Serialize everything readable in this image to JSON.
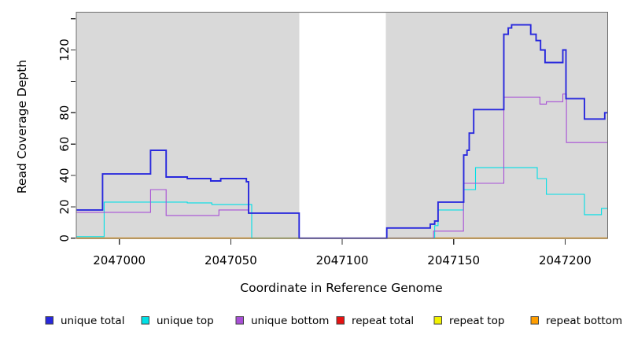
{
  "figure_title": "",
  "chart_data": {
    "type": "line",
    "line_style": "step-after",
    "title": "",
    "xlabel": "Coordinate in Reference Genome",
    "ylabel": "Read Coverage Depth",
    "xlim": [
      2046980.7,
      2047219.1
    ],
    "ylim": [
      0,
      144.1
    ],
    "grid": "off",
    "plot_background_color": "#d9d9d9",
    "masked_region": {
      "x_start": 2047080.7,
      "x_end": 2047119.5,
      "color": "#ffffff"
    },
    "x_ticks": [
      {
        "value": 2047000,
        "label": "2047000"
      },
      {
        "value": 2047050,
        "label": "2047050"
      },
      {
        "value": 2047100,
        "label": "2047100"
      },
      {
        "value": 2047150,
        "label": "2047150"
      },
      {
        "value": 2047200,
        "label": "2047200"
      }
    ],
    "y_ticks": [
      {
        "value": 0,
        "label": "0"
      },
      {
        "value": 20,
        "label": "20"
      },
      {
        "value": 40,
        "label": "40"
      },
      {
        "value": 60,
        "label": "60"
      },
      {
        "value": 80,
        "label": "80"
      },
      {
        "value": 100,
        "label": ""
      },
      {
        "value": 120,
        "label": "120"
      },
      {
        "value": 140,
        "label": ""
      }
    ],
    "legend_position": "bottom",
    "draw_order": [
      "repeat-total",
      "repeat-top",
      "repeat-bottom",
      "unique-top",
      "unique-bottom",
      "unique-total"
    ],
    "series": [
      {
        "key": "unique-total",
        "name": "unique total",
        "color": "#2828dd",
        "lwd": 1.9,
        "points": [
          [
            2046980.7,
            18
          ],
          [
            2046992.5,
            41
          ],
          [
            2047014,
            56
          ],
          [
            2047021,
            39
          ],
          [
            2047030.5,
            38
          ],
          [
            2047041,
            36.5
          ],
          [
            2047045.5,
            38
          ],
          [
            2047057,
            36
          ],
          [
            2047058,
            16
          ],
          [
            2047080.7,
            0
          ],
          [
            2047120,
            6.5
          ],
          [
            2047139.5,
            9
          ],
          [
            2047141.5,
            11
          ],
          [
            2047143,
            23
          ],
          [
            2047154.5,
            53
          ],
          [
            2047156,
            56
          ],
          [
            2047157,
            67
          ],
          [
            2047159,
            82
          ],
          [
            2047172.5,
            130
          ],
          [
            2047174.5,
            134
          ],
          [
            2047176,
            136
          ],
          [
            2047184.6,
            130
          ],
          [
            2047187,
            126
          ],
          [
            2047189,
            120
          ],
          [
            2047191,
            112
          ],
          [
            2047199,
            120
          ],
          [
            2047200.4,
            89
          ],
          [
            2047208.7,
            76
          ],
          [
            2047217.8,
            80
          ]
        ]
      },
      {
        "key": "unique-top",
        "name": "unique top",
        "color": "#00e0e6",
        "lwd": 1.1,
        "points": [
          [
            2046980.7,
            1
          ],
          [
            2046993.2,
            23
          ],
          [
            2047030.5,
            22.5
          ],
          [
            2047041.5,
            21.5
          ],
          [
            2047059.4,
            0
          ],
          [
            2047141.5,
            8
          ],
          [
            2047143,
            18
          ],
          [
            2047154.4,
            31
          ],
          [
            2047159.8,
            45
          ],
          [
            2047187.5,
            38
          ],
          [
            2047191.6,
            28
          ],
          [
            2047208.7,
            15
          ],
          [
            2047216.3,
            19
          ]
        ]
      },
      {
        "key": "unique-bottom",
        "name": "unique bottom",
        "color": "#a84fd6",
        "lwd": 1.1,
        "points": [
          [
            2046980.7,
            16.5
          ],
          [
            2047014,
            31
          ],
          [
            2047021,
            14.5
          ],
          [
            2047044.7,
            18
          ],
          [
            2047058,
            16
          ],
          [
            2047080.7,
            0
          ],
          [
            2047141,
            4.5
          ],
          [
            2047154.4,
            35
          ],
          [
            2047172.5,
            90
          ],
          [
            2047188.7,
            85.5
          ],
          [
            2047191.6,
            87
          ],
          [
            2047199,
            92
          ],
          [
            2047200.6,
            61
          ]
        ]
      },
      {
        "key": "repeat-total",
        "name": "repeat total",
        "color": "#e61212",
        "lwd": 1.1,
        "points": [
          [
            2046980.7,
            0
          ]
        ]
      },
      {
        "key": "repeat-top",
        "name": "repeat top",
        "color": "#f2f200",
        "lwd": 1.1,
        "points": [
          [
            2046980.7,
            0
          ]
        ]
      },
      {
        "key": "repeat-bottom",
        "name": "repeat bottom",
        "color": "#ff9e00",
        "lwd": 1.9,
        "points": [
          [
            2046980.7,
            0
          ]
        ]
      }
    ],
    "legend": [
      {
        "label": "unique total",
        "color": "#2828dd"
      },
      {
        "label": "unique top",
        "color": "#00e0e6"
      },
      {
        "label": "unique bottom",
        "color": "#a84fd6"
      },
      {
        "label": "repeat total",
        "color": "#e61212"
      },
      {
        "label": "repeat top",
        "color": "#f2f200"
      },
      {
        "label": "repeat bottom",
        "color": "#ff9e00"
      }
    ]
  }
}
